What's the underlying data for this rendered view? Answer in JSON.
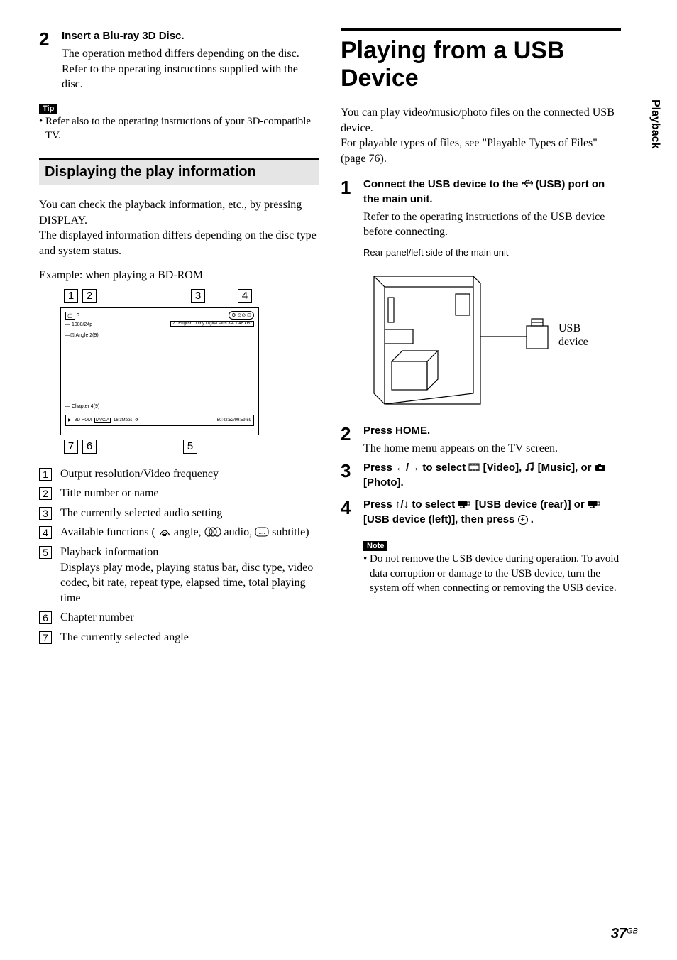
{
  "leftCol": {
    "step2": {
      "num": "2",
      "head": "Insert a Blu-ray 3D Disc.",
      "text": "The operation method differs depending on the disc. Refer to the operating instructions supplied with the disc."
    },
    "tipLabel": "Tip",
    "tipText": "• Refer also to the operating instructions of your 3D-compatible TV.",
    "sectionTitle": "Displaying the play information",
    "para1": "You can check the playback information, etc., by pressing DISPLAY.",
    "para2": "The displayed information differs depending on the disc type and system status.",
    "exampleLabel": "Example: when playing a BD-ROM",
    "diagram": {
      "topNums": [
        "1",
        "2",
        "3",
        "4"
      ],
      "bottomNums": [
        "7",
        "6",
        "5"
      ],
      "innerTopLeft": "3",
      "line1": "1080/24p",
      "line2": "Angle  2(9)",
      "audioLine": "2 : English  Dolby Digital Plus  3/4.1 48 kHz",
      "chapterLine": "Chapter 4(9)",
      "bottomLeft": "BD-ROM",
      "bottomCodec": "MVC/A",
      "bottomRate": "16.3Mbps",
      "bottomRight": "50:42:52/99:59:59"
    },
    "legend": [
      {
        "n": "1",
        "t": "Output resolution/Video frequency"
      },
      {
        "n": "2",
        "t": "Title number or name"
      },
      {
        "n": "3",
        "t": "The currently selected audio setting"
      },
      {
        "n": "4",
        "t": "Available functions ( ___angle___  angle, ___audio___  audio, ___subtitle___  subtitle)"
      },
      {
        "n": "5",
        "t": "Playback information",
        "sub": "Displays play mode, playing status bar, disc type, video codec, bit rate, repeat type, elapsed time, total playing time"
      },
      {
        "n": "6",
        "t": "Chapter number"
      },
      {
        "n": "7",
        "t": "The currently selected angle"
      }
    ]
  },
  "rightCol": {
    "heading": "Playing from a USB Device",
    "intro1": "You can play video/music/photo files on the connected USB device.",
    "intro2": "For playable types of files, see \"Playable Types of Files\" (page 76).",
    "step1": {
      "num": "1",
      "head1": "Connect the USB device to the ",
      "head2": " (USB) port on the main unit.",
      "text": "Refer to the operating instructions of the USB device before connecting."
    },
    "caption": "Rear panel/left side of the main unit",
    "usbLabel": "USB device",
    "step2": {
      "num": "2",
      "head": "Press HOME.",
      "text": "The home menu appears on the TV screen."
    },
    "step3": {
      "num": "3",
      "head": "Press ←/→ to select ___video___ [Video], ___music___ [Music], or ___photo___ [Photo]."
    },
    "step4": {
      "num": "4",
      "head": "Press ↑/↓ to select ___usb___ [USB device (rear)] or ___usb___ [USB device (left)], then press ___plus___ ."
    },
    "noteLabel": "Note",
    "noteText": "• Do not remove the USB device during operation. To avoid data corruption or damage to the USB device, turn the system off when connecting or removing the USB device."
  },
  "sideTab": "Playback",
  "pageNum": "37",
  "pageRegion": "GB"
}
